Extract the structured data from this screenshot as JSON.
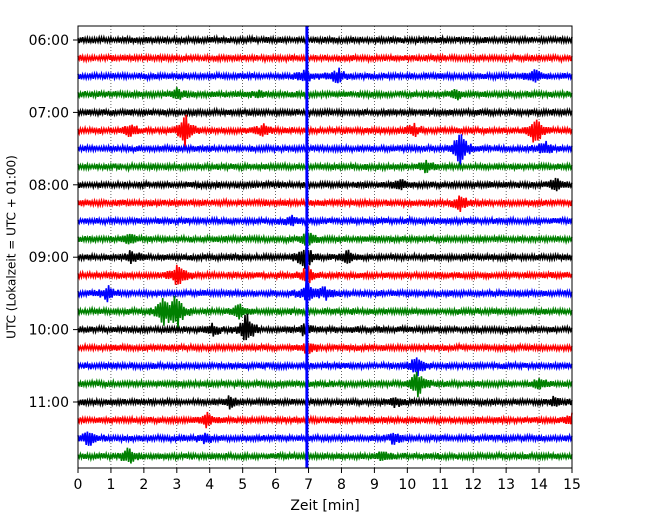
{
  "chart_data": {
    "type": "line",
    "title": "",
    "xlabel": "Zeit  [min]",
    "ylabel": "UTC (Lokalzeit = UTC + 01:00)",
    "xlim": [
      0,
      15
    ],
    "x_ticks": [
      "0",
      "1",
      "2",
      "3",
      "4",
      "5",
      "6",
      "7",
      "8",
      "9",
      "10",
      "11",
      "12",
      "13",
      "14",
      "15"
    ],
    "y_ticks": [
      {
        "label": "06:00",
        "trace": 0
      },
      {
        "label": "07:00",
        "trace": 4
      },
      {
        "label": "08:00",
        "trace": 8
      },
      {
        "label": "09:00",
        "trace": 12
      },
      {
        "label": "10:00",
        "trace": 16
      },
      {
        "label": "11:00",
        "trace": 20
      }
    ],
    "trace_interval_min": 15,
    "trace_colors": [
      "#000000",
      "#ff0000",
      "#0000ff",
      "#008000"
    ],
    "grid": {
      "vertical_dotted": true
    },
    "marker_line": {
      "x": 6.95,
      "color": "#0000ff"
    },
    "traces": [
      {
        "start": "06:00",
        "color": "#000000",
        "events": []
      },
      {
        "start": "06:15",
        "color": "#ff0000",
        "events": []
      },
      {
        "start": "06:30",
        "color": "#0000ff",
        "events": [
          {
            "x": 6.9,
            "amp": 6
          },
          {
            "x": 7.9,
            "amp": 7
          },
          {
            "x": 13.9,
            "amp": 7
          }
        ]
      },
      {
        "start": "06:45",
        "color": "#008000",
        "events": [
          {
            "x": 3.0,
            "amp": 5
          },
          {
            "x": 5.5,
            "amp": 4
          },
          {
            "x": 11.5,
            "amp": 5
          }
        ]
      },
      {
        "start": "07:00",
        "color": "#000000",
        "events": []
      },
      {
        "start": "07:15",
        "color": "#ff0000",
        "events": [
          {
            "x": 1.6,
            "amp": 8
          },
          {
            "x": 3.25,
            "amp": 18
          },
          {
            "x": 5.6,
            "amp": 6
          },
          {
            "x": 10.2,
            "amp": 6
          },
          {
            "x": 13.9,
            "amp": 16
          }
        ]
      },
      {
        "start": "07:30",
        "color": "#0000ff",
        "events": [
          {
            "x": 11.6,
            "amp": 20
          },
          {
            "x": 14.2,
            "amp": 6
          }
        ]
      },
      {
        "start": "07:45",
        "color": "#008000",
        "events": [
          {
            "x": 10.6,
            "amp": 6
          }
        ]
      },
      {
        "start": "08:00",
        "color": "#000000",
        "events": [
          {
            "x": 9.8,
            "amp": 5
          },
          {
            "x": 14.5,
            "amp": 6
          }
        ]
      },
      {
        "start": "08:15",
        "color": "#ff0000",
        "events": [
          {
            "x": 11.6,
            "amp": 7
          }
        ]
      },
      {
        "start": "08:30",
        "color": "#0000ff",
        "events": [
          {
            "x": 6.5,
            "amp": 4
          }
        ]
      },
      {
        "start": "08:45",
        "color": "#008000",
        "events": [
          {
            "x": 1.6,
            "amp": 5
          },
          {
            "x": 6.95,
            "amp": 8
          }
        ]
      },
      {
        "start": "09:00",
        "color": "#000000",
        "events": [
          {
            "x": 1.65,
            "amp": 7
          },
          {
            "x": 6.9,
            "amp": 14
          },
          {
            "x": 8.2,
            "amp": 6
          }
        ]
      },
      {
        "start": "09:15",
        "color": "#ff0000",
        "events": [
          {
            "x": 3.05,
            "amp": 14
          },
          {
            "x": 6.95,
            "amp": 10
          }
        ]
      },
      {
        "start": "09:30",
        "color": "#0000ff",
        "events": [
          {
            "x": 0.9,
            "amp": 7
          },
          {
            "x": 6.95,
            "amp": 12
          },
          {
            "x": 7.5,
            "amp": 6
          }
        ]
      },
      {
        "start": "09:45",
        "color": "#008000",
        "events": [
          {
            "x": 2.6,
            "amp": 16
          },
          {
            "x": 3.0,
            "amp": 20
          },
          {
            "x": 4.9,
            "amp": 7
          }
        ]
      },
      {
        "start": "10:00",
        "color": "#000000",
        "events": [
          {
            "x": 4.1,
            "amp": 5
          },
          {
            "x": 5.1,
            "amp": 18
          },
          {
            "x": 6.9,
            "amp": 6
          }
        ]
      },
      {
        "start": "10:15",
        "color": "#ff0000",
        "events": [
          {
            "x": 6.95,
            "amp": 6
          }
        ]
      },
      {
        "start": "10:30",
        "color": "#0000ff",
        "events": [
          {
            "x": 10.3,
            "amp": 11
          }
        ]
      },
      {
        "start": "10:45",
        "color": "#008000",
        "events": [
          {
            "x": 10.3,
            "amp": 14
          },
          {
            "x": 14.0,
            "amp": 5
          }
        ]
      },
      {
        "start": "11:00",
        "color": "#000000",
        "events": [
          {
            "x": 4.6,
            "amp": 6
          },
          {
            "x": 9.6,
            "amp": 5
          },
          {
            "x": 14.5,
            "amp": 5
          }
        ]
      },
      {
        "start": "11:15",
        "color": "#ff0000",
        "events": [
          {
            "x": 3.9,
            "amp": 6
          },
          {
            "x": 15.0,
            "amp": 5
          }
        ]
      },
      {
        "start": "11:30",
        "color": "#0000ff",
        "events": [
          {
            "x": 0.35,
            "amp": 8
          },
          {
            "x": 3.9,
            "amp": 5
          },
          {
            "x": 9.6,
            "amp": 5
          }
        ]
      },
      {
        "start": "11:45",
        "color": "#008000",
        "events": [
          {
            "x": 1.55,
            "amp": 8
          },
          {
            "x": 9.3,
            "amp": 5
          }
        ]
      }
    ]
  }
}
